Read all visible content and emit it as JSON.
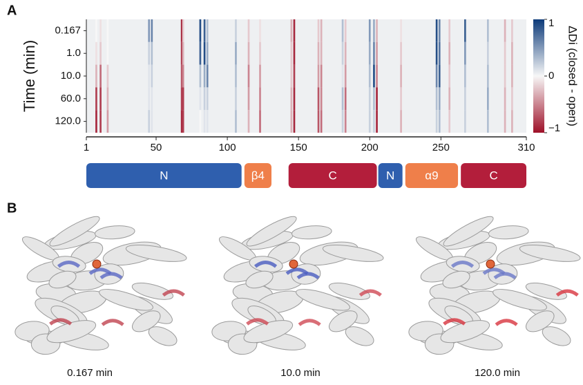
{
  "chart_data": {
    "type": "heatmap",
    "panel_label": "A",
    "y_label": "Time (min)",
    "rows": [
      {
        "value": 0.167,
        "label": "0.167"
      },
      {
        "value": 1,
        "label": "1.0"
      },
      {
        "value": 10,
        "label": "10.0"
      },
      {
        "value": 60,
        "label": "60.0"
      },
      {
        "value": 120,
        "label": "120.0"
      }
    ],
    "xlim": [
      1,
      310
    ],
    "xticks": [
      1,
      50,
      100,
      150,
      200,
      250,
      310
    ],
    "columns": [
      {
        "x": 8,
        "values": [
          0,
          -0.1,
          -0.3,
          -0.8,
          -0.9
        ]
      },
      {
        "x": 11,
        "values": [
          -0.1,
          -0.2,
          -0.6,
          -0.8,
          -0.8
        ]
      },
      {
        "x": 16,
        "values": [
          0,
          0,
          -0.2,
          -0.3,
          -0.4
        ]
      },
      {
        "x": 45,
        "values": [
          0.5,
          0.2,
          0.1,
          0.1,
          0.2
        ]
      },
      {
        "x": 47,
        "values": [
          0.6,
          0.3,
          0.2,
          0.1,
          0.1
        ]
      },
      {
        "x": 68,
        "values": [
          -0.9,
          -0.8,
          -0.7,
          -0.8,
          -0.9
        ]
      },
      {
        "x": 69,
        "values": [
          -0.2,
          -0.3,
          -0.5,
          -0.8,
          -0.8
        ]
      },
      {
        "x": 81,
        "values": [
          0.9,
          0.8,
          0.3,
          0.1,
          0
        ]
      },
      {
        "x": 84,
        "values": [
          0.8,
          0.9,
          0.4,
          0.2,
          0.1
        ]
      },
      {
        "x": 86,
        "values": [
          0.3,
          0.4,
          0.6,
          0.2,
          0.1
        ]
      },
      {
        "x": 106,
        "values": [
          0.2,
          0.4,
          0.3,
          0.2,
          0.3
        ]
      },
      {
        "x": 115,
        "values": [
          -0.2,
          -0.3,
          -0.5,
          -0.4,
          -0.3
        ]
      },
      {
        "x": 123,
        "values": [
          -0.1,
          -0.2,
          -0.4,
          -0.5,
          -0.6
        ]
      },
      {
        "x": 145,
        "values": [
          -0.3,
          -0.2,
          -0.2,
          -0.3,
          -0.3
        ]
      },
      {
        "x": 147,
        "values": [
          -0.9,
          -0.9,
          -0.8,
          -0.9,
          -0.9
        ]
      },
      {
        "x": 164,
        "values": [
          -0.2,
          -0.3,
          -0.4,
          -0.7,
          -0.7
        ]
      },
      {
        "x": 166,
        "values": [
          -0.3,
          -0.3,
          -0.5,
          -0.5,
          -0.6
        ]
      },
      {
        "x": 181,
        "values": [
          0.3,
          0.2,
          0.1,
          0.3,
          0.2
        ]
      },
      {
        "x": 183,
        "values": [
          -0.2,
          -0.3,
          -0.4,
          -0.6,
          -0.5
        ]
      },
      {
        "x": 200,
        "values": [
          0.5,
          0.4,
          0.3,
          0.2,
          0.2
        ]
      },
      {
        "x": 203,
        "values": [
          0.4,
          0.6,
          0.9,
          0.3,
          0.2
        ]
      },
      {
        "x": 205,
        "values": [
          -0.3,
          -0.4,
          -0.5,
          -0.9,
          -0.9
        ]
      },
      {
        "x": 222,
        "values": [
          -0.1,
          -0.2,
          -0.3,
          -0.2,
          -0.3
        ]
      },
      {
        "x": 247,
        "values": [
          0.9,
          0.9,
          0.6,
          0.3,
          0.2
        ]
      },
      {
        "x": 249,
        "values": [
          0.6,
          0.7,
          0.8,
          0.4,
          0.3
        ]
      },
      {
        "x": 256,
        "values": [
          -0.2,
          -0.3,
          -0.2,
          -0.3,
          -0.2
        ]
      },
      {
        "x": 267,
        "values": [
          0.8,
          0.5,
          0.3,
          0.2,
          0.2
        ]
      },
      {
        "x": 283,
        "values": [
          0.3,
          0.2,
          0.3,
          0.4,
          0.3
        ]
      },
      {
        "x": 295,
        "values": [
          -0.3,
          -0.2,
          -0.2,
          -0.3,
          -0.3
        ]
      },
      {
        "x": 300,
        "values": [
          -0.2,
          -0.3,
          -0.3,
          -0.2,
          -0.3
        ]
      }
    ],
    "colorbar": {
      "lim": [
        -1,
        1
      ],
      "ticks": [
        1,
        0,
        {
          "value": -1,
          "label": "−1"
        }
      ],
      "label": "ΔDi (closed - open)",
      "colors": [
        "#9e1028",
        "#f7f7f7",
        "#0d3b7a"
      ]
    },
    "domains": [
      {
        "label": "N",
        "start": 1,
        "end": 110,
        "color": "#2f5fae"
      },
      {
        "label": "β4",
        "start": 112,
        "end": 131,
        "color": "#ef7f4a"
      },
      {
        "label": "C",
        "start": 143,
        "end": 205,
        "color": "#b31e3b"
      },
      {
        "label": "N",
        "start": 206,
        "end": 223,
        "color": "#2f5fae"
      },
      {
        "label": "α9",
        "start": 225,
        "end": 262,
        "color": "#ef7f4a"
      },
      {
        "label": "C",
        "start": 264,
        "end": 310,
        "color": "#b31e3b"
      }
    ]
  },
  "panel_b": {
    "label": "B",
    "structures": [
      {
        "label": "0.167 min"
      },
      {
        "label": "10.0 min"
      },
      {
        "label": "120.0 min"
      }
    ]
  }
}
